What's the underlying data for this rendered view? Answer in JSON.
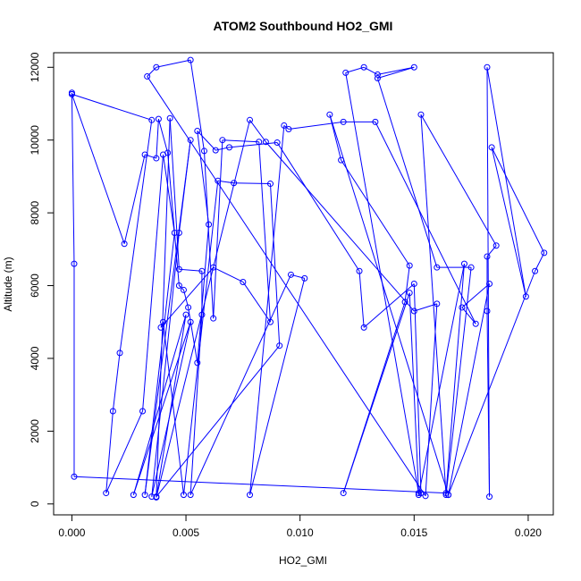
{
  "chart_data": {
    "type": "line",
    "title": "ATOM2 Southbound HO2_GMI",
    "xlabel": "HO2_GMI",
    "ylabel": "Altitude (m)",
    "xlim": [
      -0.0008,
      0.0211
    ],
    "ylim": [
      -300,
      12400
    ],
    "x_ticks": [
      0.0,
      0.005,
      0.01,
      0.015,
      0.02
    ],
    "x_tick_labels": [
      "0.000",
      "0.005",
      "0.010",
      "0.015",
      "0.020"
    ],
    "y_ticks": [
      0,
      2000,
      4000,
      6000,
      8000,
      10000,
      12000
    ],
    "y_tick_labels": [
      "0",
      "2000",
      "4000",
      "6000",
      "8000",
      "10000",
      "12000"
    ],
    "markers": "open-circle",
    "grid": false,
    "legend": "none",
    "series": [
      {
        "color": "#0000ff",
        "points": [
          [
            0.0,
            11300
          ],
          [
            0.0,
            11260
          ],
          [
            0.0023,
            7150
          ],
          [
            0.0032,
            9600
          ],
          [
            0.0037,
            9500
          ],
          [
            0.0038,
            10580
          ],
          [
            0.0042,
            9650
          ],
          [
            0.0047,
            6000
          ],
          [
            0.0049,
            5880
          ],
          [
            0.0051,
            5400
          ],
          [
            0.0055,
            3880
          ],
          [
            0.006,
            7680
          ],
          [
            0.0055,
            10250
          ],
          [
            0.0063,
            9720
          ],
          [
            0.0069,
            9800
          ],
          [
            0.009,
            9930
          ],
          [
            0.0126,
            6400
          ],
          [
            0.0128,
            4850
          ],
          [
            0.015,
            6050
          ],
          [
            0.0153,
            300
          ],
          [
            0.0152,
            250
          ],
          [
            0.0172,
            6600
          ],
          [
            0.0164,
            300
          ],
          [
            0.0001,
            750
          ],
          [
            0.0001,
            6600
          ],
          [
            0.0,
            11260
          ],
          [
            0.0035,
            10550
          ],
          [
            0.0021,
            4150
          ],
          [
            0.0018,
            2550
          ],
          [
            0.0015,
            300
          ],
          [
            0.0031,
            2550
          ],
          [
            0.004,
            9600
          ],
          [
            0.0045,
            7450
          ],
          [
            0.0032,
            250
          ],
          [
            0.0052,
            10000
          ],
          [
            0.0047,
            7450
          ],
          [
            0.0035,
            200
          ],
          [
            0.0052,
            5000
          ],
          [
            0.0027,
            250
          ],
          [
            0.005,
            5200
          ],
          [
            0.0037,
            180
          ],
          [
            0.0078,
            10550
          ],
          [
            0.0085,
            9950
          ],
          [
            0.015,
            5300
          ],
          [
            0.016,
            5500
          ],
          [
            0.0155,
            220
          ],
          [
            0.0033,
            11750
          ],
          [
            0.0037,
            12000
          ],
          [
            0.0052,
            12200
          ],
          [
            0.0058,
            9700
          ],
          [
            0.0062,
            5100
          ],
          [
            0.0066,
            10000
          ],
          [
            0.0082,
            9950
          ],
          [
            0.0087,
            5000
          ],
          [
            0.0075,
            6100
          ],
          [
            0.0062,
            6500
          ],
          [
            0.0039,
            4850
          ],
          [
            0.004,
            5000
          ],
          [
            0.0049,
            250
          ],
          [
            0.0064,
            8880
          ],
          [
            0.0071,
            8820
          ],
          [
            0.0087,
            8800
          ],
          [
            0.0091,
            4350
          ],
          [
            0.0037,
            200
          ],
          [
            0.0043,
            10600
          ],
          [
            0.0047,
            6450
          ],
          [
            0.0057,
            6400
          ],
          [
            0.0057,
            5200
          ],
          [
            0.0052,
            250
          ],
          [
            0.0096,
            6300
          ],
          [
            0.0102,
            6200
          ],
          [
            0.0078,
            250
          ],
          [
            0.0093,
            10400
          ],
          [
            0.0095,
            10300
          ],
          [
            0.0119,
            10500
          ],
          [
            0.0133,
            10500
          ],
          [
            0.0177,
            4950
          ],
          [
            0.0171,
            5400
          ],
          [
            0.0183,
            6050
          ],
          [
            0.0165,
            250
          ],
          [
            0.0113,
            10700
          ],
          [
            0.0118,
            9450
          ],
          [
            0.0148,
            6550
          ],
          [
            0.0146,
            5550
          ],
          [
            0.0119,
            300
          ],
          [
            0.0148,
            5800
          ],
          [
            0.0152,
            300
          ],
          [
            0.012,
            11850
          ],
          [
            0.0128,
            12000
          ],
          [
            0.0134,
            11800
          ],
          [
            0.015,
            12000
          ],
          [
            0.0134,
            11700
          ],
          [
            0.016,
            6500
          ],
          [
            0.0175,
            6500
          ],
          [
            0.0164,
            250
          ],
          [
            0.0153,
            10700
          ],
          [
            0.0186,
            7100
          ],
          [
            0.0182,
            6800
          ],
          [
            0.0182,
            5300
          ],
          [
            0.0183,
            200
          ],
          [
            0.0182,
            12000
          ],
          [
            0.0199,
            5700
          ],
          [
            0.0184,
            9800
          ],
          [
            0.0207,
            6900
          ],
          [
            0.0203,
            6400
          ],
          [
            0.0165,
            250
          ]
        ]
      }
    ]
  }
}
